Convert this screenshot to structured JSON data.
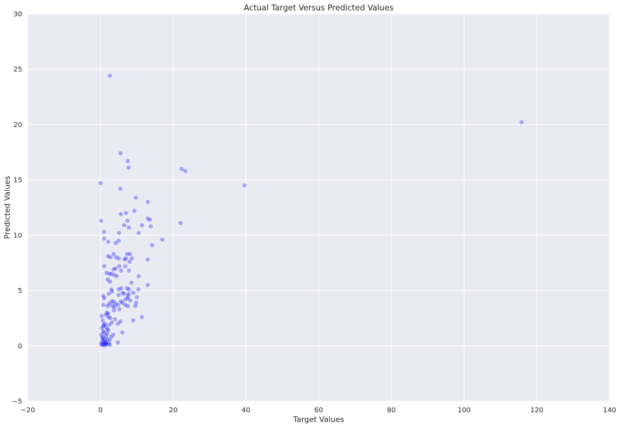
{
  "chart_data": {
    "type": "scatter",
    "title": "Actual Target Versus Predicted Values",
    "xlabel": "Target Values",
    "ylabel": "Predicted Values",
    "xlim": [
      -20,
      140
    ],
    "ylim": [
      -5,
      30
    ],
    "xticks": [
      -20,
      0,
      20,
      40,
      60,
      80,
      100,
      120,
      140
    ],
    "yticks": [
      -5,
      0,
      5,
      10,
      15,
      20,
      25,
      30
    ],
    "xtick_labels": [
      "−20",
      "0",
      "20",
      "40",
      "60",
      "80",
      "100",
      "120",
      "140"
    ],
    "ytick_labels": [
      "−5",
      "0",
      "5",
      "10",
      "15",
      "20",
      "25",
      "30"
    ],
    "grid": true,
    "background_color": "#eaeaf2",
    "grid_color": "#ffffff",
    "marker_color": "#0000ff",
    "marker_opacity": 0.3,
    "points": [
      [
        2.6,
        24.4
      ],
      [
        115.8,
        20.2
      ],
      [
        5.5,
        17.4
      ],
      [
        7.5,
        16.7
      ],
      [
        7.7,
        16.1
      ],
      [
        22.3,
        16.0
      ],
      [
        23.3,
        15.8
      ],
      [
        0.0,
        14.7
      ],
      [
        39.6,
        14.5
      ],
      [
        5.5,
        14.2
      ],
      [
        9.7,
        13.4
      ],
      [
        13.0,
        13.0
      ],
      [
        9.3,
        12.2
      ],
      [
        7.0,
        12.0
      ],
      [
        5.6,
        11.9
      ],
      [
        13.0,
        11.5
      ],
      [
        13.6,
        11.4
      ],
      [
        0.2,
        11.3
      ],
      [
        7.4,
        11.3
      ],
      [
        22.0,
        11.1
      ],
      [
        6.5,
        10.9
      ],
      [
        11.4,
        10.9
      ],
      [
        13.8,
        10.8
      ],
      [
        7.8,
        10.7
      ],
      [
        1.0,
        10.3
      ],
      [
        10.5,
        10.2
      ],
      [
        5.1,
        10.2
      ],
      [
        1.0,
        9.7
      ],
      [
        17.0,
        9.6
      ],
      [
        5.0,
        9.5
      ],
      [
        2.1,
        9.4
      ],
      [
        4.2,
        9.3
      ],
      [
        14.2,
        9.1
      ],
      [
        7.3,
        8.3
      ],
      [
        8.1,
        8.3
      ],
      [
        3.6,
        8.3
      ],
      [
        2.1,
        8.1
      ],
      [
        2.8,
        8.0
      ],
      [
        4.3,
        8.0
      ],
      [
        5.0,
        7.9
      ],
      [
        7.0,
        7.9
      ],
      [
        8.6,
        7.9
      ],
      [
        6.6,
        7.8
      ],
      [
        13.0,
        7.8
      ],
      [
        8.0,
        7.6
      ],
      [
        1.0,
        7.2
      ],
      [
        5.2,
        7.2
      ],
      [
        6.8,
        7.2
      ],
      [
        4.2,
        7.0
      ],
      [
        3.6,
        6.9
      ],
      [
        5.7,
        6.8
      ],
      [
        7.8,
        6.8
      ],
      [
        1.7,
        6.6
      ],
      [
        2.5,
        6.5
      ],
      [
        3.0,
        6.5
      ],
      [
        3.8,
        6.4
      ],
      [
        4.5,
        6.3
      ],
      [
        10.5,
        6.3
      ],
      [
        2.0,
        6.0
      ],
      [
        2.6,
        5.8
      ],
      [
        8.5,
        5.7
      ],
      [
        13.0,
        5.5
      ],
      [
        5.7,
        5.2
      ],
      [
        7.3,
        5.2
      ],
      [
        3.0,
        5.1
      ],
      [
        5.0,
        5.1
      ],
      [
        10.4,
        5.1
      ],
      [
        7.8,
        5.1
      ],
      [
        3.2,
        4.9
      ],
      [
        9.0,
        4.8
      ],
      [
        6.1,
        4.8
      ],
      [
        2.3,
        4.7
      ],
      [
        6.5,
        4.7
      ],
      [
        7.7,
        4.7
      ],
      [
        5.0,
        4.6
      ],
      [
        0.8,
        4.5
      ],
      [
        7.6,
        4.5
      ],
      [
        10.0,
        4.4
      ],
      [
        1.0,
        4.3
      ],
      [
        7.5,
        4.3
      ],
      [
        6.8,
        4.2
      ],
      [
        3.6,
        4.0
      ],
      [
        8.2,
        4.1
      ],
      [
        3.0,
        4.0
      ],
      [
        5.6,
        4.0
      ],
      [
        6.0,
        3.9
      ],
      [
        9.8,
        3.9
      ],
      [
        2.4,
        3.8
      ],
      [
        4.1,
        3.8
      ],
      [
        6.8,
        3.7
      ],
      [
        0.8,
        3.7
      ],
      [
        2.0,
        3.6
      ],
      [
        7.5,
        3.6
      ],
      [
        9.6,
        3.6
      ],
      [
        3.3,
        3.6
      ],
      [
        3.8,
        3.5
      ],
      [
        4.8,
        3.7
      ],
      [
        5.2,
        3.3
      ],
      [
        3.7,
        3.2
      ],
      [
        1.8,
        3.0
      ],
      [
        2.1,
        2.9
      ],
      [
        1.5,
        2.8
      ],
      [
        0.3,
        2.7
      ],
      [
        2.2,
        2.6
      ],
      [
        11.4,
        2.6
      ],
      [
        2.7,
        2.5
      ],
      [
        4.0,
        2.4
      ],
      [
        9.0,
        2.3
      ],
      [
        0.6,
        2.3
      ],
      [
        5.5,
        2.2
      ],
      [
        3.1,
        2.1
      ],
      [
        4.8,
        2.0
      ],
      [
        1.2,
        2.0
      ],
      [
        2.4,
        1.9
      ],
      [
        0.8,
        1.8
      ],
      [
        1.5,
        1.7
      ],
      [
        0.4,
        1.6
      ],
      [
        2.1,
        1.4
      ],
      [
        0.7,
        1.3
      ],
      [
        1.0,
        1.2
      ],
      [
        1.8,
        1.1
      ],
      [
        6.0,
        1.2
      ],
      [
        3.5,
        1.0
      ],
      [
        0.2,
        1.0
      ],
      [
        1.5,
        0.9
      ],
      [
        2.9,
        0.8
      ],
      [
        0.5,
        0.7
      ],
      [
        1.2,
        0.6
      ],
      [
        1.9,
        0.6
      ],
      [
        0.7,
        0.5
      ],
      [
        2.5,
        0.5
      ],
      [
        1.0,
        0.4
      ],
      [
        1.6,
        0.3
      ],
      [
        0.3,
        0.3
      ],
      [
        4.8,
        0.3
      ],
      [
        1.3,
        0.2
      ],
      [
        2.2,
        0.2
      ],
      [
        0.5,
        0.15
      ],
      [
        1.1,
        0.1
      ],
      [
        0.2,
        0.1
      ],
      [
        1.7,
        0.1
      ],
      [
        0.9,
        0.05
      ],
      [
        1.4,
        0.25
      ],
      [
        0.6,
        0.8
      ],
      [
        1.9,
        1.5
      ],
      [
        2.6,
        0.1
      ],
      [
        0.9,
        1.9
      ]
    ]
  }
}
